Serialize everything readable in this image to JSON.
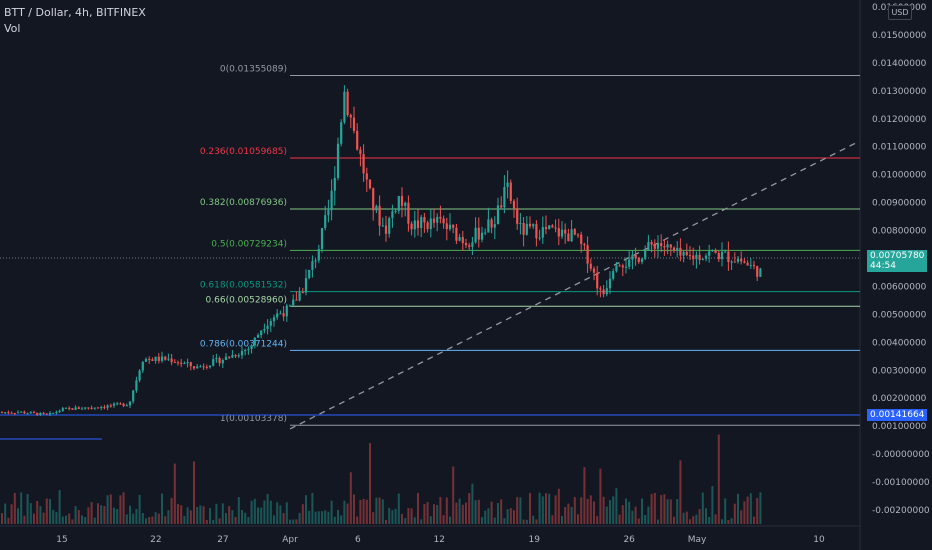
{
  "header": {
    "title": "BTT / Dollar, 4h, BITFINEX",
    "vol_label": "Vol"
  },
  "axis": {
    "currency": "USD",
    "y_ticks": [
      "0.01600000",
      "0.01500000",
      "0.01400000",
      "0.01300000",
      "0.01200000",
      "0.01100000",
      "0.01000000",
      "0.00900000",
      "0.00800000",
      "0.00700000",
      "0.00600000",
      "0.00500000",
      "0.00400000",
      "0.00300000",
      "0.00200000",
      "0.00100000",
      "-0.00000000",
      "-0.00100000",
      "-0.00200000"
    ],
    "x_ticks": [
      "15",
      "22",
      "27",
      "Apr",
      "6",
      "12",
      "19",
      "26",
      "May",
      "10"
    ]
  },
  "price_tag": {
    "price": "0.00705780",
    "countdown": "44:54"
  },
  "level_tag": "0.00141664",
  "fib_levels": [
    {
      "label": "0(0.01355089)",
      "value": 0.01355089,
      "color": "#9598a1"
    },
    {
      "label": "0.236(0.01059685)",
      "value": 0.01059685,
      "color": "#f23645"
    },
    {
      "label": "0.382(0.00876936)",
      "value": 0.00876936,
      "color": "#81c784"
    },
    {
      "label": "0.5(0.00729234)",
      "value": 0.00729234,
      "color": "#4caf50"
    },
    {
      "label": "0.618(0.00581532)",
      "value": 0.00581532,
      "color": "#089981"
    },
    {
      "label": "0.66(0.00528960)",
      "value": 0.0052896,
      "color": "#a5d6a7"
    },
    {
      "label": "0.786(0.00371244)",
      "value": 0.00371244,
      "color": "#64b5f6"
    },
    {
      "label": "1(0.00103378)",
      "value": 0.00103378,
      "color": "#9598a1"
    }
  ],
  "colors": {
    "up": "#26a69a",
    "down": "#ef5350",
    "background": "#131722"
  },
  "chart_data": {
    "type": "candlestick",
    "symbol": "BTT / Dollar",
    "interval": "4h",
    "exchange": "BITFINEX",
    "ylim": [
      -0.0025,
      0.0162
    ],
    "x_range": [
      "Mar 12",
      "May 13"
    ],
    "keypoints": [
      {
        "date": "Mar 12",
        "price": 0.0015
      },
      {
        "date": "Mar 14",
        "price": 0.0014
      },
      {
        "date": "Mar 15",
        "price": 0.0016
      },
      {
        "date": "Mar 18",
        "price": 0.0017
      },
      {
        "date": "Mar 20",
        "price": 0.0018
      },
      {
        "date": "Mar 21",
        "price": 0.0034
      },
      {
        "date": "Mar 23",
        "price": 0.0034
      },
      {
        "date": "Mar 25",
        "price": 0.0031
      },
      {
        "date": "Mar 27",
        "price": 0.0034
      },
      {
        "date": "Mar 29",
        "price": 0.0038
      },
      {
        "date": "Mar 30",
        "price": 0.0046
      },
      {
        "date": "Mar 31",
        "price": 0.005
      },
      {
        "date": "Apr 1",
        "price": 0.0052
      },
      {
        "date": "Apr 2",
        "price": 0.006
      },
      {
        "date": "Apr 3",
        "price": 0.0072
      },
      {
        "date": "Apr 4",
        "price": 0.009
      },
      {
        "date": "Apr 5",
        "price": 0.013
      },
      {
        "date": "Apr 6",
        "price": 0.011
      },
      {
        "date": "Apr 7",
        "price": 0.009
      },
      {
        "date": "Apr 8",
        "price": 0.008
      },
      {
        "date": "Apr 9",
        "price": 0.0092
      },
      {
        "date": "Apr 10",
        "price": 0.0082
      },
      {
        "date": "Apr 12",
        "price": 0.0083
      },
      {
        "date": "Apr 14",
        "price": 0.0076
      },
      {
        "date": "Apr 16",
        "price": 0.0083
      },
      {
        "date": "Apr 17",
        "price": 0.0095
      },
      {
        "date": "Apr 18",
        "price": 0.008
      },
      {
        "date": "Apr 20",
        "price": 0.008
      },
      {
        "date": "Apr 22",
        "price": 0.0078
      },
      {
        "date": "Apr 23",
        "price": 0.007
      },
      {
        "date": "Apr 24",
        "price": 0.0056
      },
      {
        "date": "Apr 25",
        "price": 0.007
      },
      {
        "date": "Apr 26",
        "price": 0.0068
      },
      {
        "date": "Apr 28",
        "price": 0.0076
      },
      {
        "date": "Apr 30",
        "price": 0.007
      },
      {
        "date": "May 2",
        "price": 0.0072
      },
      {
        "date": "May 4",
        "price": 0.007
      },
      {
        "date": "May 6",
        "price": 0.0064
      },
      {
        "date": "May 7",
        "price": 0.00705
      }
    ],
    "trendline": [
      {
        "date": "Apr 1",
        "price": 0.0009
      },
      {
        "date": "May 13",
        "price": 0.0112
      }
    ]
  }
}
